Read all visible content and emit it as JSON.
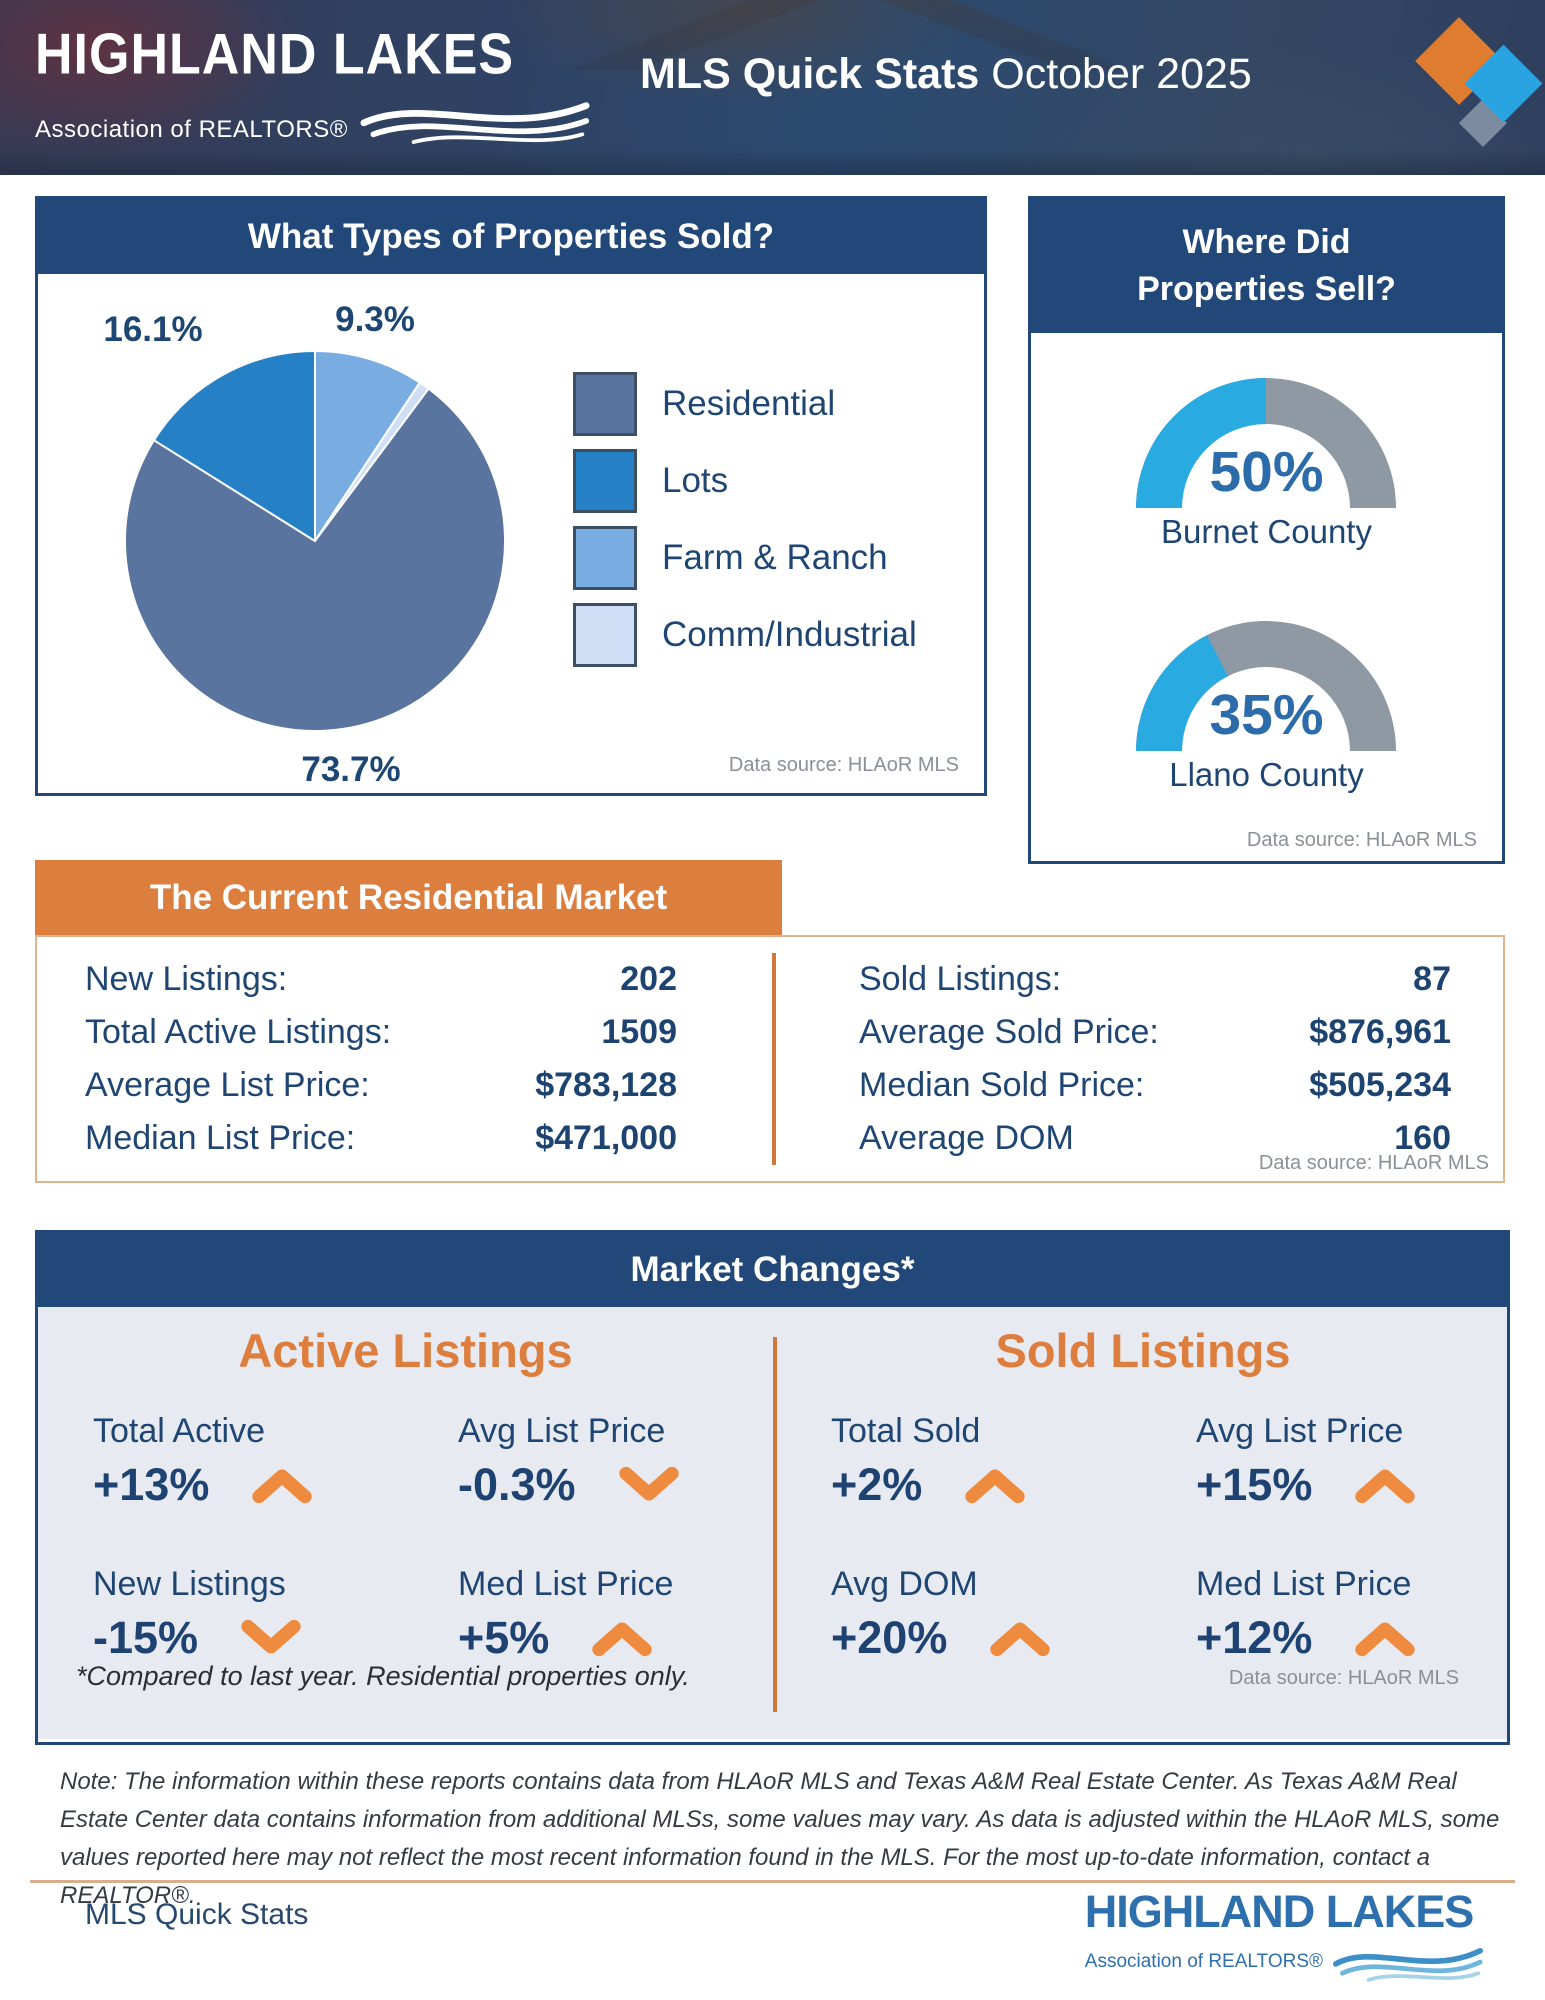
{
  "header": {
    "logo_title": "HIGHLAND LAKES",
    "logo_subtitle": "Association of REALTORS®",
    "title_bold": "MLS Quick Stats",
    "title_regular": "October 2025"
  },
  "pie_panel": {
    "title": "What Types of Properties Sold?",
    "data_source": "Data source: HLAoR MLS"
  },
  "gauge_panel": {
    "title_line1": "Where Did",
    "title_line2": "Properties Sell?",
    "data_source": "Data source: HLAoR MLS"
  },
  "market": {
    "title": "The Current Residential Market",
    "left_rows": [
      {
        "label": "New Listings:",
        "value": "202"
      },
      {
        "label": "Total Active Listings:",
        "value": "1509"
      },
      {
        "label": "Average List Price:",
        "value": "$783,128"
      },
      {
        "label": "Median List Price:",
        "value": "$471,000"
      }
    ],
    "right_rows": [
      {
        "label": "Sold Listings:",
        "value": "87"
      },
      {
        "label": "Average Sold Price:",
        "value": "$876,961"
      },
      {
        "label": "Median Sold Price:",
        "value": "$505,234"
      },
      {
        "label": "Average DOM",
        "value": "160"
      }
    ],
    "data_source": "Data source: HLAoR MLS"
  },
  "changes": {
    "title": "Market Changes*",
    "active": {
      "title": "Active Listings",
      "items": [
        {
          "label": "Total Active",
          "value": "+13%",
          "dir": "up"
        },
        {
          "label": "Avg List Price",
          "value": "-0.3%",
          "dir": "down"
        },
        {
          "label": "New Listings",
          "value": "-15%",
          "dir": "down"
        },
        {
          "label": "Med List Price",
          "value": "+5%",
          "dir": "up"
        }
      ]
    },
    "sold": {
      "title": "Sold Listings",
      "items": [
        {
          "label": "Total Sold",
          "value": "+2%",
          "dir": "up"
        },
        {
          "label": "Avg List Price",
          "value": "+15%",
          "dir": "up"
        },
        {
          "label": "Avg DOM",
          "value": "+20%",
          "dir": "up"
        },
        {
          "label": "Med List Price",
          "value": "+12%",
          "dir": "up"
        }
      ]
    },
    "footnote": "*Compared to last year. Residential properties only.",
    "data_source": "Data source: HLAoR MLS"
  },
  "note": "Note: The information within these reports contains data from HLAoR MLS and Texas A&M Real Estate Center. As Texas A&M Real Estate Center data contains information from additional MLSs, some values may vary. As data is adjusted within the HLAoR MLS, some values reported here may not reflect the most recent information found in the MLS. For the most up-to-date information, contact a REALTOR®.",
  "footer": {
    "left_text": "MLS Quick Stats",
    "logo_title": "HIGHLAND LAKES",
    "logo_subtitle": "Association of REALTORS®"
  },
  "colors": {
    "navy_panel": "#214878",
    "navy_text": "#1f4673",
    "orange": "#dc7e3e",
    "orange_arrow": "#ee8b3f",
    "light_body": "#e7eaf0",
    "datasource_gray": "#8b9097",
    "footer_blue": "#2e6fae"
  },
  "chart_data": [
    {
      "id": "property-types-pie",
      "type": "pie",
      "title": "What Types of Properties Sold?",
      "slices": [
        {
          "label": "Residential",
          "value": 73.7,
          "display": "73.7%",
          "color": "#58749f"
        },
        {
          "label": "Lots",
          "value": 16.1,
          "display": "16.1%",
          "color": "#2580c6"
        },
        {
          "label": "Farm & Ranch",
          "value": 9.3,
          "display": "9.3%",
          "color": "#79ade2"
        },
        {
          "label": "Comm/Industrial",
          "value": 0.9,
          "display": "",
          "color": "#cfe0f6"
        }
      ],
      "draw_order_clockwise_from_top": [
        "Farm & Ranch",
        "Comm/Industrial",
        "Residential",
        "Lots"
      ],
      "legend_position": "right",
      "data_source": "Data source: HLAoR MLS"
    },
    {
      "id": "county-gauges",
      "type": "gauge",
      "title": "Where Did Properties Sell?",
      "gauges": [
        {
          "label": "Burnet County",
          "value_pct": 50,
          "display": "50%"
        },
        {
          "label": "Llano County",
          "value_pct": 35,
          "display": "35%"
        }
      ],
      "fill_color": "#29abe2",
      "track_color": "#8e99a3",
      "data_source": "Data source: HLAoR MLS"
    }
  ]
}
